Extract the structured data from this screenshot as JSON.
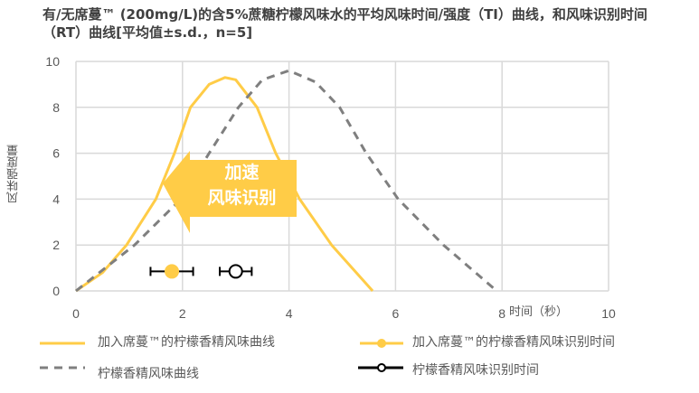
{
  "title": "有/无席蔓™ (200mg/L)的含5%蔗糖柠檬风味水的平均风味时间/强度（TI）曲线，和风味识别时间（RT）曲线[平均值±s.d.，n=5]",
  "callout": {
    "line1": "加速",
    "line2": "风味识别",
    "color": "#FFCC47"
  },
  "chart_data": {
    "type": "line",
    "title": "有/无席蔓™ (200mg/L)的含5%蔗糖柠檬风味水的平均风味时间/强度（TI）曲线，和风味识别时间（RT）曲线[平均值±s.d.，n=5]",
    "xlabel": "时间（秒）",
    "ylabel": "风味强度量",
    "xlim": [
      0,
      10
    ],
    "ylim": [
      0,
      10
    ],
    "xticks": [
      "0",
      "2",
      "4",
      "6",
      "8",
      "10"
    ],
    "yticks": [
      "0",
      "2",
      "4",
      "6",
      "8",
      "10"
    ],
    "grid": true,
    "legend_position": "bottom",
    "series": [
      {
        "name": "加入席蔓™的柠檬香精风味曲线",
        "color": "#FFCC47",
        "style": "solid",
        "x": [
          0,
          0.5,
          0.95,
          1.5,
          1.85,
          2.15,
          2.5,
          2.8,
          3.0,
          3.4,
          3.75,
          4.2,
          4.8,
          5.57
        ],
        "y": [
          0,
          0.8,
          2,
          4,
          6,
          8,
          9.0,
          9.3,
          9.2,
          8,
          6,
          4,
          2,
          0
        ]
      },
      {
        "name": "柠檬香精风味曲线",
        "color": "#7F7F7F",
        "style": "dashed",
        "x": [
          0,
          1.1,
          1.97,
          2.5,
          3.05,
          3.5,
          4.0,
          4.5,
          4.95,
          5.45,
          6.05,
          6.9,
          7.9
        ],
        "y": [
          0,
          2,
          4,
          6,
          8,
          9.2,
          9.6,
          9.1,
          8,
          6,
          4,
          2,
          0
        ]
      },
      {
        "name": "加入席蔓™的柠檬香精风味识别时间",
        "color": "#FFCC47",
        "type": "point",
        "x": 1.8,
        "y": 0.85,
        "xerr": 0.4,
        "filled": true
      },
      {
        "name": "柠檬香精风味识别时间",
        "color": "#000000",
        "type": "point",
        "x": 3.0,
        "y": 0.85,
        "xerr": 0.3,
        "filled": false
      }
    ]
  }
}
